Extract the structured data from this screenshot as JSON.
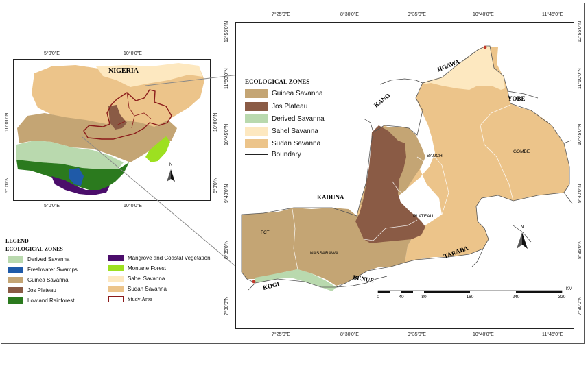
{
  "colors": {
    "guinea_savanna": "#c4a574",
    "jos_plateau": "#8a5b45",
    "derived_savanna": "#b9d9ae",
    "sahel_savanna": "#fde8c0",
    "sudan_savanna": "#ecc48a",
    "freshwater_swamps": "#1f5aa8",
    "lowland_rainforest": "#2b7a1e",
    "mangrove": "#4b0d6b",
    "montane_forest": "#9de020",
    "study_area": "#8b1a1a"
  },
  "inset": {
    "title": "NIGERIA",
    "top_ticks": [
      "5°0'0\"E",
      "10°0'0\"E"
    ],
    "bottom_ticks": [
      "5°0'0\"E",
      "10°0'0\"E"
    ],
    "left_ticks": [
      "10°0'0\"N",
      "5°0'0\"N"
    ],
    "right_ticks": [
      "10°0'0\"N",
      "5°0'0\"N"
    ],
    "north_label": "N"
  },
  "legend_left": {
    "title": "LEGEND",
    "subtitle": "ECOLOGICAL ZONES",
    "items": [
      {
        "label": "Derived Savanna",
        "color_key": "derived_savanna"
      },
      {
        "label": "Freshwater Swamps",
        "color_key": "freshwater_swamps"
      },
      {
        "label": "Guinea Savanna",
        "color_key": "guinea_savanna"
      },
      {
        "label": "Jos Plateau",
        "color_key": "jos_plateau"
      },
      {
        "label": "Lowland Rainforest",
        "color_key": "lowland_rainforest"
      },
      {
        "label": "Mangrove and Coastal Vegetation",
        "color_key": "mangrove"
      },
      {
        "label": "Montane Forest",
        "color_key": "montane_forest"
      },
      {
        "label": "Sahel Savanna",
        "color_key": "sahel_savanna"
      },
      {
        "label": "Sudan Savanna",
        "color_key": "sudan_savanna"
      },
      {
        "label": "Study Area",
        "color_key": "study_area"
      }
    ]
  },
  "main": {
    "top_ticks": [
      "7°25'0\"E",
      "8°30'0\"E",
      "9°35'0\"E",
      "10°40'0\"E",
      "11°45'0\"E"
    ],
    "bottom_ticks": [
      "7°25'0\"E",
      "8°30'0\"E",
      "9°35'0\"E",
      "10°40'0\"E",
      "11°45'0\"E"
    ],
    "left_ticks": [
      "12°55'0\"N",
      "11°50'0\"N",
      "10°45'0\"N",
      "9°40'0\"N",
      "8°35'0\"N",
      "7°30'0\"N"
    ],
    "right_ticks": [
      "12°55'0\"N",
      "11°50'0\"N",
      "10°45'0\"N",
      "9°40'0\"N",
      "8°35'0\"N",
      "7°30'0\"N"
    ],
    "legend_title": "ECOLOGICAL ZONES",
    "legend_items": [
      {
        "label": "Guinea Savanna",
        "color_key": "guinea_savanna"
      },
      {
        "label": "Jos Plateau",
        "color_key": "jos_plateau"
      },
      {
        "label": "Derived Savanna",
        "color_key": "derived_savanna"
      },
      {
        "label": "Sahel Savanna",
        "color_key": "sahel_savanna"
      },
      {
        "label": "Sudan Savanna",
        "color_key": "sudan_savanna"
      }
    ],
    "boundary_label": "Boundary",
    "states": {
      "jigawa": "JIGAWA",
      "kano": "KANO",
      "yobe": "YOBE",
      "kaduna": "KADUNA",
      "taraba": "TARABA",
      "benue": "BENUE",
      "kogi": "KOGI",
      "bauchi": "BAUCHI",
      "gombe": "GOMBE",
      "plateau": "PLATEAU",
      "fct": "FCT",
      "nassarawa": "NASSARAWA"
    },
    "scale_labels": [
      "0",
      "40",
      "80",
      "160",
      "240",
      "320"
    ],
    "scale_unit": "KM",
    "north_label": "N"
  }
}
